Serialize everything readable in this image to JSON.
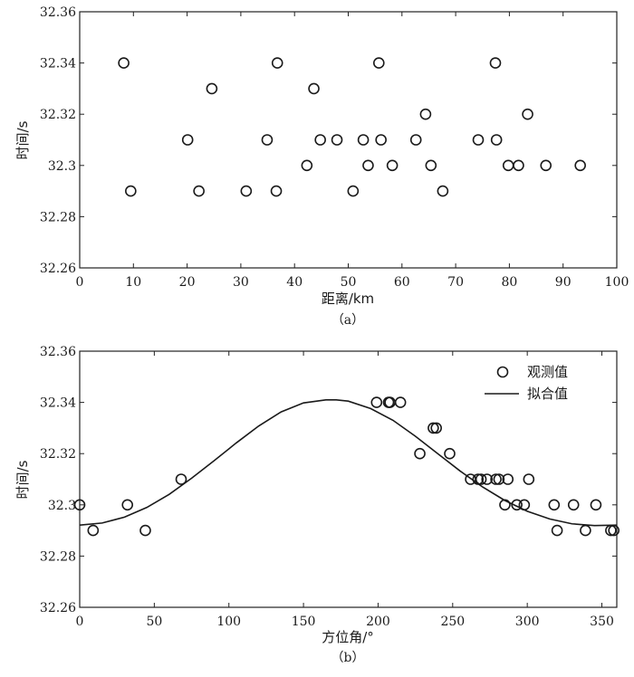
{
  "chart_data": [
    {
      "type": "scatter",
      "caption": "（a）",
      "xlabel": "距离/km",
      "ylabel": "时间/s",
      "xlim": [
        0,
        100
      ],
      "ylim": [
        32.26,
        32.36
      ],
      "xticks": [
        "0",
        "10",
        "20",
        "30",
        "40",
        "50",
        "60",
        "70",
        "80",
        "90",
        "100"
      ],
      "yticks": [
        "32.26",
        "32.28",
        "32.3",
        "32.32",
        "32.34",
        "32.36"
      ],
      "grid": false,
      "series": [
        {
          "marker": "circle",
          "points": [
            [
              8.2,
              32.34
            ],
            [
              9.5,
              32.29
            ],
            [
              20.1,
              32.31
            ],
            [
              22.2,
              32.29
            ],
            [
              24.6,
              32.33
            ],
            [
              31.0,
              32.29
            ],
            [
              34.9,
              32.31
            ],
            [
              36.6,
              32.29
            ],
            [
              36.8,
              32.34
            ],
            [
              42.3,
              32.3
            ],
            [
              43.6,
              32.33
            ],
            [
              44.8,
              32.31
            ],
            [
              47.9,
              32.31
            ],
            [
              50.9,
              32.29
            ],
            [
              52.8,
              32.31
            ],
            [
              53.7,
              32.3
            ],
            [
              55.7,
              32.34
            ],
            [
              56.1,
              32.31
            ],
            [
              58.2,
              32.3
            ],
            [
              62.6,
              32.31
            ],
            [
              64.4,
              32.32
            ],
            [
              65.4,
              32.3
            ],
            [
              67.6,
              32.29
            ],
            [
              74.2,
              32.31
            ],
            [
              77.4,
              32.34
            ],
            [
              77.6,
              32.31
            ],
            [
              79.8,
              32.3
            ],
            [
              81.7,
              32.3
            ],
            [
              83.4,
              32.32
            ],
            [
              86.8,
              32.3
            ],
            [
              93.2,
              32.3
            ]
          ]
        }
      ]
    },
    {
      "type": "scatter",
      "caption": "（b）",
      "xlabel": "方位角/°",
      "ylabel": "时间/s",
      "xlim": [
        0,
        360
      ],
      "ylim": [
        32.26,
        32.36
      ],
      "xticks": [
        "0",
        "50",
        "100",
        "150",
        "200",
        "250",
        "300",
        "350"
      ],
      "yticks": [
        "32.26",
        "32.28",
        "32.3",
        "32.32",
        "32.34",
        "32.36"
      ],
      "grid": false,
      "legend_position": "top-right",
      "series": [
        {
          "name": "观测值",
          "marker": "circle",
          "points": [
            [
              0,
              32.3
            ],
            [
              9,
              32.29
            ],
            [
              32,
              32.3
            ],
            [
              44,
              32.29
            ],
            [
              68,
              32.31
            ],
            [
              199,
              32.34
            ],
            [
              207,
              32.34
            ],
            [
              208,
              32.34
            ],
            [
              215,
              32.34
            ],
            [
              228,
              32.32
            ],
            [
              237,
              32.33
            ],
            [
              239,
              32.33
            ],
            [
              248,
              32.32
            ],
            [
              262,
              32.31
            ],
            [
              267,
              32.31
            ],
            [
              269,
              32.31
            ],
            [
              273,
              32.31
            ],
            [
              279,
              32.31
            ],
            [
              281,
              32.31
            ],
            [
              285,
              32.3
            ],
            [
              287,
              32.31
            ],
            [
              293,
              32.3
            ],
            [
              298,
              32.3
            ],
            [
              301,
              32.31
            ],
            [
              318,
              32.3
            ],
            [
              320,
              32.29
            ],
            [
              331,
              32.3
            ],
            [
              339,
              32.29
            ],
            [
              346,
              32.3
            ],
            [
              356,
              32.29
            ],
            [
              358,
              32.29
            ]
          ]
        },
        {
          "name": "拟合值",
          "line": "solid",
          "points": [
            [
              0,
              32.2921
            ],
            [
              15,
              32.2929
            ],
            [
              30,
              32.2952
            ],
            [
              45,
              32.299
            ],
            [
              60,
              32.3041
            ],
            [
              75,
              32.3104
            ],
            [
              90,
              32.3172
            ],
            [
              105,
              32.3242
            ],
            [
              120,
              32.3308
            ],
            [
              135,
              32.3363
            ],
            [
              150,
              32.3398
            ],
            [
              165,
              32.341
            ],
            [
              172,
              32.341
            ],
            [
              180,
              32.3405
            ],
            [
              195,
              32.3376
            ],
            [
              210,
              32.333
            ],
            [
              225,
              32.3268
            ],
            [
              240,
              32.32
            ],
            [
              255,
              32.3132
            ],
            [
              270,
              32.307
            ],
            [
              285,
              32.3017
            ],
            [
              300,
              32.2975
            ],
            [
              315,
              32.2945
            ],
            [
              330,
              32.2926
            ],
            [
              345,
              32.2919
            ],
            [
              360,
              32.2921
            ]
          ]
        }
      ]
    }
  ]
}
